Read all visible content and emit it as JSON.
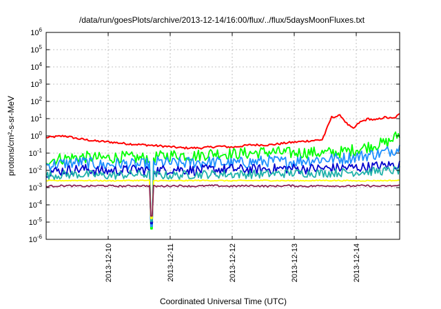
{
  "chart_data": {
    "type": "line",
    "title": "/data/run/goesPlots/archive/2013-12-14/16:00/flux/../flux/5daysMoonFluxes.txt",
    "xlabel": "Coordinated Universal Time (UTC)",
    "ylabel": "protons/cm²-s-sr-MeV",
    "x_tick_labels": [
      "2013-12-10",
      "2013-12-11",
      "2013-12-12",
      "2013-12-13",
      "2013-12-14"
    ],
    "x_range_days": [
      0.0,
      5.7
    ],
    "x_tick_positions_days": [
      1.0,
      2.0,
      3.0,
      4.0,
      5.0
    ],
    "y_scale": "log",
    "ylim": [
      1e-06,
      1000000.0
    ],
    "y_tick_exponents": [
      -6,
      -5,
      -4,
      -3,
      -2,
      -1,
      0,
      1,
      2,
      3,
      4,
      5,
      6
    ],
    "grid": true,
    "series": [
      {
        "color": "#ff0000",
        "x": [
          0.0,
          0.3,
          0.5,
          0.8,
          1.0,
          1.3,
          1.6,
          1.9,
          2.2,
          2.5,
          2.8,
          3.0,
          3.3,
          3.6,
          3.9,
          4.2,
          4.45,
          4.5,
          4.6,
          4.75,
          4.85,
          4.95,
          5.05,
          5.2,
          5.3,
          5.45,
          5.6,
          5.7
        ],
        "y": [
          0.8,
          1.0,
          0.7,
          0.5,
          0.45,
          0.35,
          0.3,
          0.25,
          0.2,
          0.2,
          0.25,
          0.22,
          0.3,
          0.3,
          0.4,
          0.5,
          0.6,
          1.5,
          12,
          15,
          5,
          2.5,
          6,
          10,
          8,
          12,
          10,
          18
        ]
      },
      {
        "color": "#00ff00",
        "x": [
          0.0,
          0.3,
          0.6,
          0.9,
          1.2,
          1.5,
          1.8,
          2.1,
          2.4,
          2.7,
          3.0,
          3.3,
          3.6,
          3.9,
          4.2,
          4.5,
          4.8,
          5.1,
          5.3,
          5.5,
          5.6,
          5.7
        ],
        "y": [
          0.04,
          0.05,
          0.06,
          0.05,
          0.06,
          0.05,
          0.06,
          0.08,
          0.07,
          0.1,
          0.09,
          0.1,
          0.12,
          0.1,
          0.11,
          0.1,
          0.12,
          0.2,
          0.3,
          0.4,
          0.7,
          1.3
        ]
      },
      {
        "color": "#1e90ff",
        "x": [
          0.0,
          0.3,
          0.6,
          0.9,
          1.2,
          1.5,
          1.8,
          2.1,
          2.4,
          2.7,
          3.0,
          3.3,
          3.6,
          3.9,
          4.2,
          4.5,
          4.8,
          5.1,
          5.4,
          5.7
        ],
        "y": [
          0.02,
          0.025,
          0.03,
          0.02,
          0.025,
          0.02,
          0.03,
          0.025,
          0.03,
          0.03,
          0.025,
          0.03,
          0.035,
          0.03,
          0.04,
          0.045,
          0.05,
          0.07,
          0.1,
          0.2
        ]
      },
      {
        "color": "#0000cd",
        "x": [
          0.0,
          0.3,
          0.6,
          0.9,
          1.2,
          1.5,
          1.8,
          2.1,
          2.4,
          2.7,
          3.0,
          3.3,
          3.6,
          3.9,
          4.2,
          4.5,
          4.8,
          5.1,
          5.4,
          5.7
        ],
        "y": [
          0.008,
          0.01,
          0.012,
          0.009,
          0.01,
          0.011,
          0.01,
          0.012,
          0.01,
          0.011,
          0.012,
          0.011,
          0.012,
          0.013,
          0.012,
          0.013,
          0.014,
          0.015,
          0.018,
          0.022
        ]
      },
      {
        "color": "#20b2aa",
        "x": [
          0.0,
          0.5,
          1.0,
          1.5,
          2.0,
          2.5,
          3.0,
          3.5,
          4.0,
          4.5,
          5.0,
          5.7
        ],
        "y": [
          0.005,
          0.006,
          0.005,
          0.006,
          0.005,
          0.006,
          0.006,
          0.006,
          0.007,
          0.007,
          0.008,
          0.01
        ]
      },
      {
        "color": "#ffff00",
        "x": [
          0.0,
          0.5,
          1.0,
          1.5,
          2.0,
          2.5,
          3.0,
          3.5,
          4.0,
          4.5,
          5.0,
          5.7
        ],
        "y": [
          0.0025,
          0.0026,
          0.0025,
          0.0026,
          0.0025,
          0.0026,
          0.0025,
          0.0026,
          0.0025,
          0.0026,
          0.0025,
          0.0026
        ]
      },
      {
        "color": "#8b2252",
        "x": [
          0.0,
          0.3,
          0.6,
          0.9,
          1.2,
          1.5,
          1.8,
          2.1,
          2.4,
          2.7,
          3.0,
          3.3,
          3.6,
          3.9,
          4.2,
          4.5,
          4.8,
          5.1,
          5.4,
          5.7
        ],
        "y": [
          0.0012,
          0.0013,
          0.0012,
          0.0013,
          0.0012,
          0.0013,
          0.0012,
          0.0013,
          0.0012,
          0.0013,
          0.0012,
          0.0013,
          0.0012,
          0.0013,
          0.0012,
          0.0013,
          0.0012,
          0.0013,
          0.0012,
          0.0013
        ]
      }
    ],
    "dip": {
      "x": 1.7,
      "y": 4e-06
    }
  }
}
